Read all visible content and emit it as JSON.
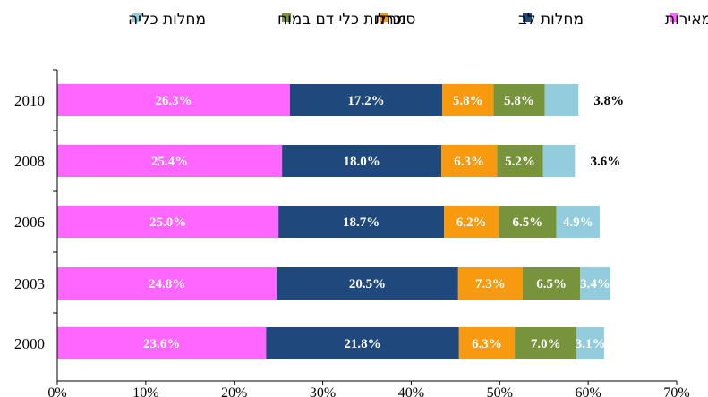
{
  "chart_data": {
    "type": "bar",
    "orientation": "horizontal",
    "stacked": true,
    "categories": [
      "2010",
      "2008",
      "2006",
      "2003",
      "2000"
    ],
    "series": [
      {
        "name": "שאתות ממאירות",
        "color": "#ff66ff",
        "label_color": "#ffffff",
        "values": [
          26.3,
          25.4,
          25.0,
          24.8,
          23.6
        ],
        "labels": [
          "26.3%",
          "25.4%",
          "25.0%",
          "24.8%",
          "23.6%"
        ]
      },
      {
        "name": "מחלות לב",
        "color": "#1f497d",
        "label_color": "#ffffff",
        "values": [
          17.2,
          18.0,
          18.7,
          20.5,
          21.8
        ],
        "labels": [
          "17.2%",
          "18.0%",
          "18.7%",
          "20.5%",
          "21.8%"
        ]
      },
      {
        "name": "סוכרת",
        "color": "#f79a0f",
        "label_color": "#ffffff",
        "values": [
          5.8,
          6.3,
          6.2,
          7.3,
          6.3
        ],
        "labels": [
          "5.8%",
          "6.3%",
          "6.2%",
          "7.3%",
          "6.3%"
        ]
      },
      {
        "name": "מחלות כלי דם במוח",
        "color": "#77933c",
        "label_color": "#ffffff",
        "values": [
          5.8,
          5.2,
          6.5,
          6.5,
          7.0
        ],
        "labels": [
          "5.8%",
          "5.2%",
          "6.5%",
          "6.5%",
          "7.0%"
        ]
      },
      {
        "name": "מחלות כליה",
        "color": "#93cddd",
        "label_color": "#ffffff",
        "values": [
          3.8,
          3.6,
          4.9,
          3.4,
          3.1
        ],
        "labels": [
          "3.8%",
          "3.6%",
          "4.9%",
          "3.4%",
          "3.1%"
        ],
        "labels_outside": [
          true,
          true,
          false,
          false,
          false
        ]
      }
    ],
    "xlim": [
      0,
      70
    ],
    "xticks": [
      "0%",
      "10%",
      "20%",
      "30%",
      "40%",
      "50%",
      "60%",
      "70%"
    ],
    "legend": {
      "position": "top",
      "direction": "rtl"
    },
    "grid": false,
    "title": "",
    "xlabel": "",
    "ylabel": ""
  }
}
